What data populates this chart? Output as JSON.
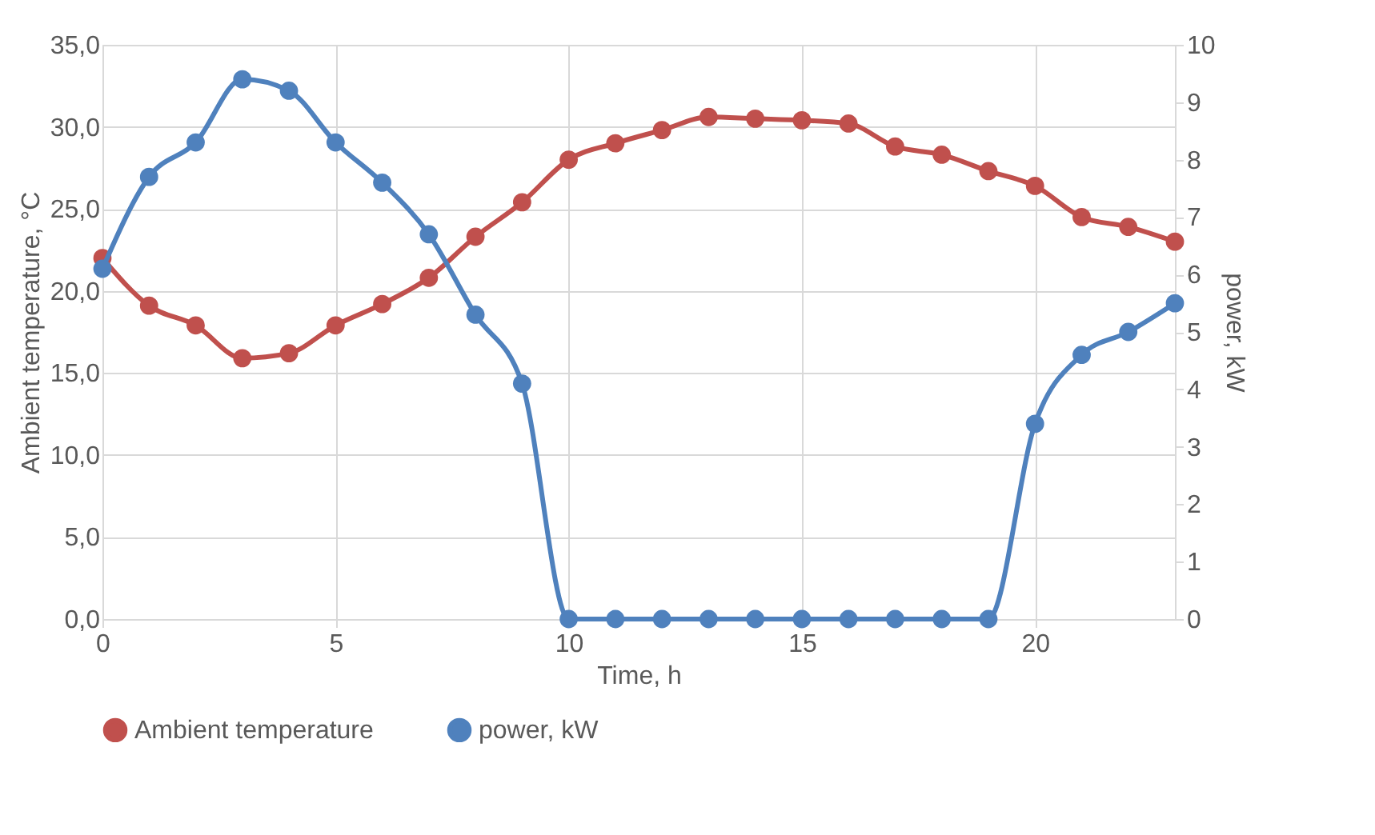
{
  "chart_data": {
    "type": "line",
    "xlabel": "Time, h",
    "ylabel": "Ambient temperature, °C",
    "y2label": "power, kW",
    "x": [
      0,
      1,
      2,
      3,
      4,
      5,
      6,
      7,
      8,
      9,
      10,
      11,
      12,
      13,
      14,
      15,
      16,
      17,
      18,
      19,
      20,
      21,
      22,
      23
    ],
    "series": [
      {
        "name": "Ambient temperature",
        "color": "#c0504d",
        "values": [
          22.0,
          19.1,
          17.9,
          15.9,
          16.2,
          17.9,
          19.2,
          20.8,
          23.3,
          25.4,
          28.0,
          29.0,
          29.8,
          30.6,
          30.5,
          30.4,
          30.2,
          28.8,
          28.3,
          27.3,
          26.4,
          24.5,
          23.9,
          23.0
        ]
      },
      {
        "name": "power, kW",
        "color": "#4f81bd",
        "axis": "y2",
        "values": [
          6.1,
          7.7,
          8.3,
          9.4,
          9.2,
          8.3,
          7.6,
          6.7,
          5.3,
          4.1,
          0,
          0,
          0,
          0,
          0,
          0,
          0,
          0,
          0,
          0,
          3.4,
          4.6,
          5.0,
          5.5
        ]
      }
    ],
    "xlim": [
      0,
      23
    ],
    "xticks": [
      0,
      5,
      10,
      15,
      20
    ],
    "ylim": [
      0,
      35
    ],
    "yticks": [
      {
        "value": 0,
        "label": "0,0"
      },
      {
        "value": 5,
        "label": "5,0"
      },
      {
        "value": 10,
        "label": "10,0"
      },
      {
        "value": 15,
        "label": "15,0"
      },
      {
        "value": 20,
        "label": "20,0"
      },
      {
        "value": 25,
        "label": "25,0"
      },
      {
        "value": 30,
        "label": "30,0"
      },
      {
        "value": 35,
        "label": "35,0"
      }
    ],
    "y2lim": [
      0,
      10
    ],
    "y2ticks": [
      0,
      1,
      2,
      3,
      4,
      5,
      6,
      7,
      8,
      9,
      10
    ],
    "grid": true,
    "legend": "bottom",
    "marker": "circle",
    "line_style": "solid"
  }
}
